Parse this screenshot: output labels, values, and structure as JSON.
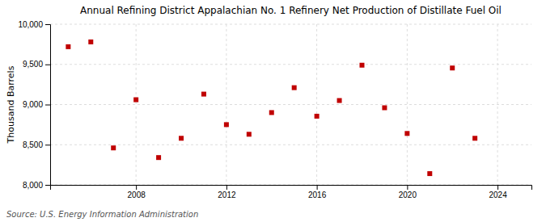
{
  "chart_data": {
    "type": "scatter",
    "title": "Annual Refining District Appalachian No. 1 Refinery Net Production of Distillate Fuel Oil",
    "ylabel": "Thousand Barrels",
    "source": "Source: U.S. Energy Information Administration",
    "x": [
      2005,
      2006,
      2007,
      2008,
      2009,
      2010,
      2011,
      2012,
      2013,
      2014,
      2015,
      2016,
      2017,
      2018,
      2019,
      2020,
      2021,
      2022,
      2023
    ],
    "values": [
      9720,
      9780,
      8460,
      9060,
      8340,
      8580,
      9130,
      8750,
      8630,
      8900,
      9210,
      8855,
      9050,
      9490,
      8960,
      8640,
      8140,
      9455,
      8580
    ],
    "color": "#c00000",
    "marker": "square",
    "xlim": [
      2004.2,
      2025.5
    ],
    "xticks": [
      2008,
      2012,
      2016,
      2020,
      2024
    ],
    "ylim": [
      8000,
      10000
    ],
    "yticks": [
      {
        "value": 8000,
        "label": "8,000"
      },
      {
        "value": 8500,
        "label": "8,500"
      },
      {
        "value": 9000,
        "label": "9,000"
      },
      {
        "value": 9500,
        "label": "9,500"
      },
      {
        "value": 10000,
        "label": "10,000"
      }
    ],
    "grid": true
  }
}
